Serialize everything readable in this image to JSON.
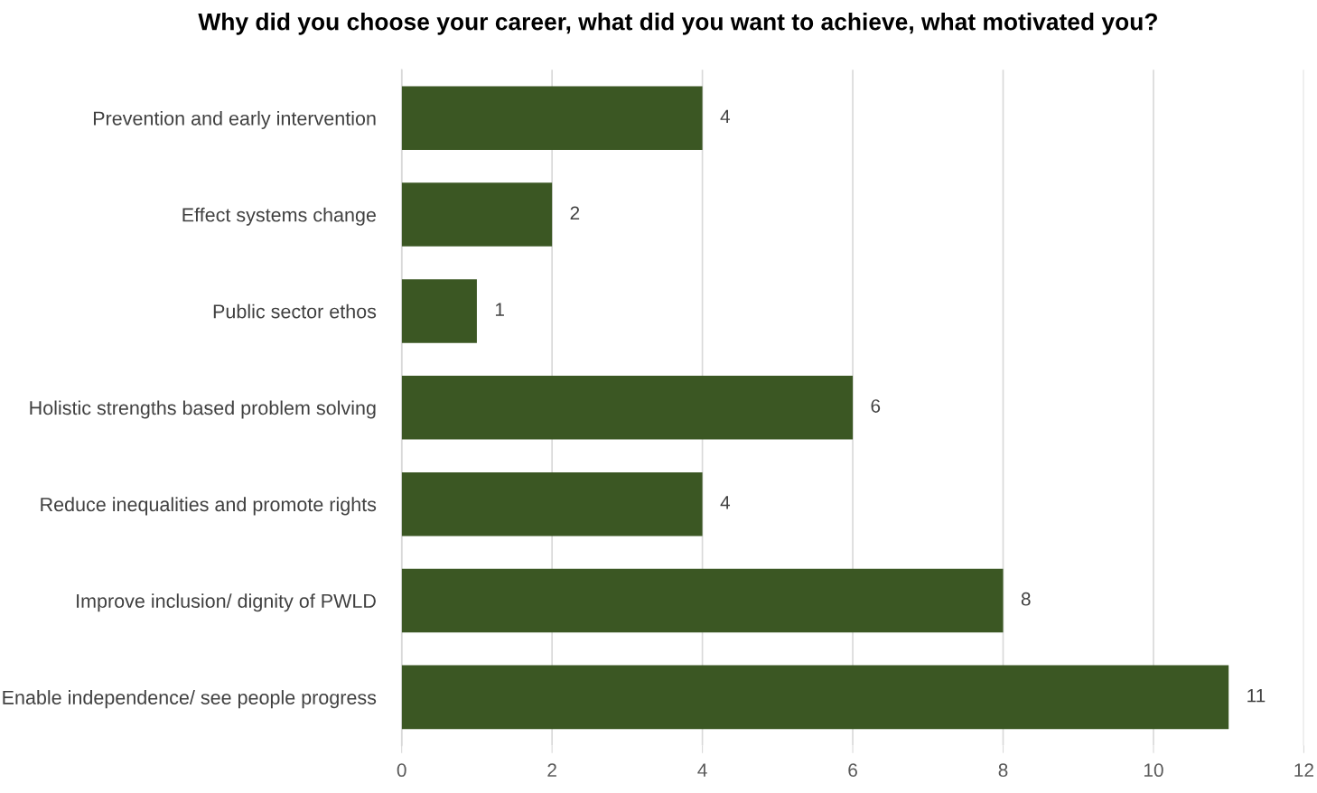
{
  "chart_data": {
    "type": "bar",
    "orientation": "horizontal",
    "title": "Why did you choose your career, what did you want to achieve, what motivated you?",
    "categories": [
      "Prevention and early intervention",
      "Effect systems change",
      "Public sector ethos",
      "Holistic strengths based problem solving",
      "Reduce inequalities and promote rights",
      "Improve inclusion/ dignity of PWLD",
      "Enable independence/ see people progress"
    ],
    "values": [
      4,
      2,
      1,
      6,
      4,
      8,
      11
    ],
    "color": "#3b5723",
    "xlim": [
      0,
      12
    ],
    "xticks": [
      0,
      2,
      4,
      6,
      8,
      10,
      12
    ],
    "grid": "x",
    "data_labels": true
  }
}
